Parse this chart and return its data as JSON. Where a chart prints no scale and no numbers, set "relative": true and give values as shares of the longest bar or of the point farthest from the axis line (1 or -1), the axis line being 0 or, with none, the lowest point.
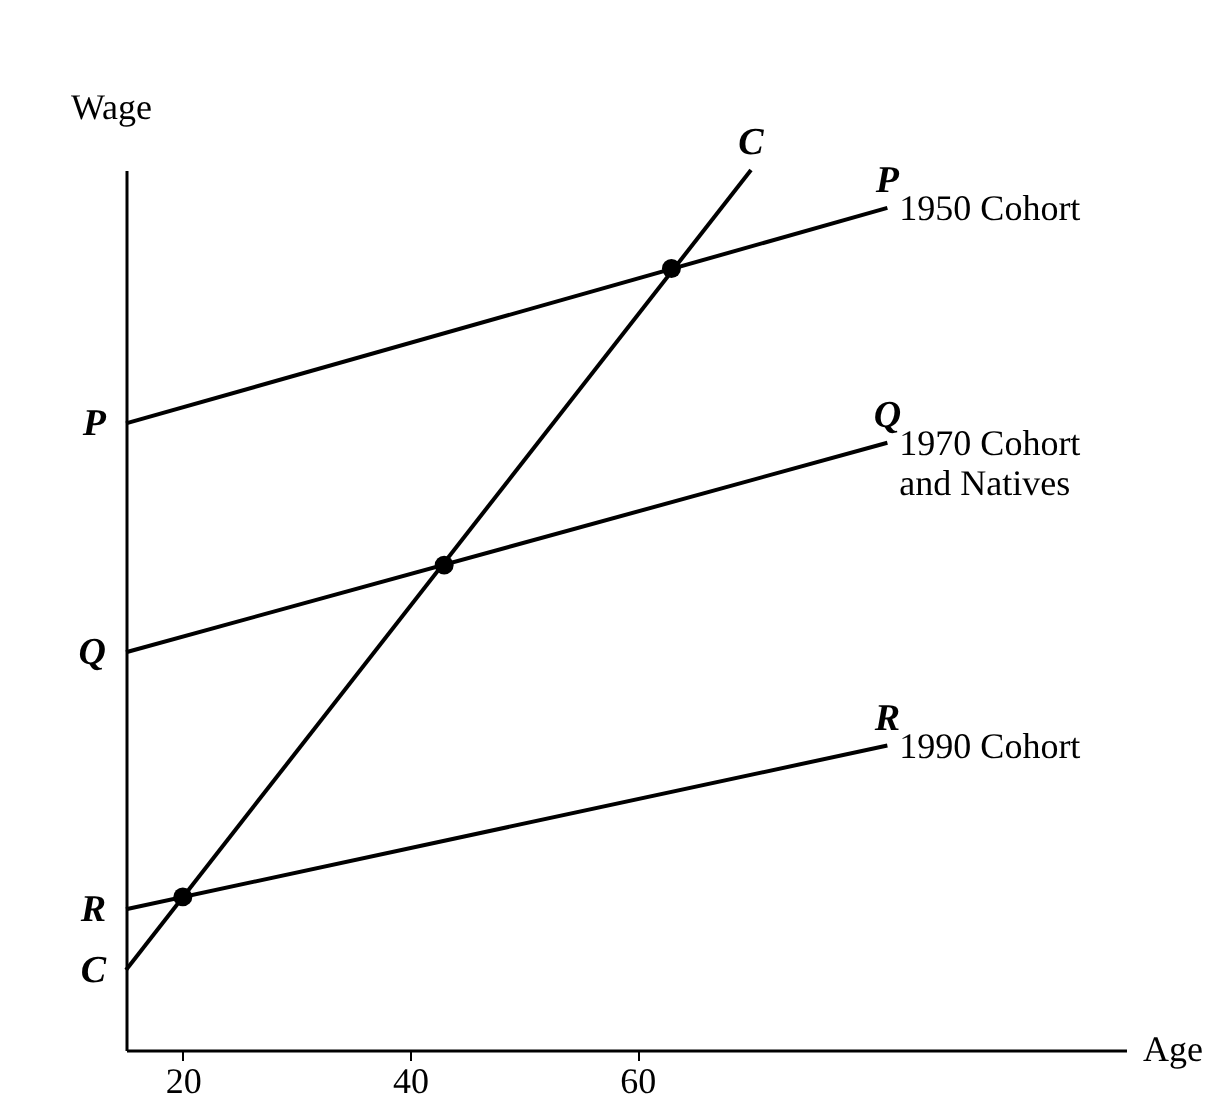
{
  "chart_data": {
    "type": "line",
    "relative": true,
    "xlabel": "Age",
    "ylabel": "Wage",
    "xlim": [
      15,
      103
    ],
    "xticks": [
      20,
      40,
      60
    ],
    "grid": false,
    "legend": false,
    "marker": "none",
    "line_style": "solid",
    "series": [
      {
        "name": "1950 Cohort",
        "color": "#000000",
        "x": [
          15,
          82
        ],
        "values": [
          0.712,
          0.957
        ]
      },
      {
        "name": "1970 Cohort\nand Natives",
        "color": "#000000",
        "x": [
          15,
          82
        ],
        "values": [
          0.452,
          0.69
        ]
      },
      {
        "name": "1990 Cohort",
        "color": "#000000",
        "x": [
          15,
          82
        ],
        "values": [
          0.16,
          0.346
        ]
      },
      {
        "color": "#000000",
        "x": [
          15,
          70
        ],
        "values": [
          0.091,
          1
        ]
      },
      {
        "type": "scatter",
        "marker": "circle",
        "color": "#000000",
        "x": [
          20,
          43,
          63
        ],
        "values": [
          0.174,
          0.551,
          0.888
        ]
      }
    ],
    "annotations": [
      {
        "text": "P",
        "x": 15,
        "y": 0.712
      },
      {
        "text": "Q",
        "x": 15,
        "y": 0.452
      },
      {
        "text": "R",
        "x": 15,
        "y": 0.16
      },
      {
        "text": "C",
        "x": 15,
        "y": 0.091
      },
      {
        "text": "P",
        "x": 82,
        "y": 0.957
      },
      {
        "text": "Q",
        "x": 82,
        "y": 0.69
      },
      {
        "text": "R",
        "x": 82,
        "y": 0.346
      },
      {
        "text": "C",
        "x": 70,
        "y": 1
      }
    ]
  }
}
